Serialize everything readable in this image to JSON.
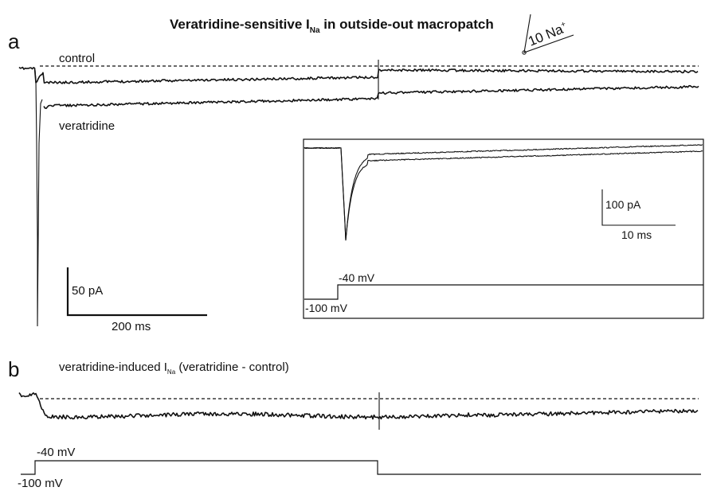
{
  "figure": {
    "title_main": "Veratridine-sensitive I",
    "title_sub": "Na",
    "title_rest": " in outside-out macropatch",
    "pipette_label": "10 Na",
    "pipette_sup": "+"
  },
  "panel_a": {
    "letter": "a",
    "control_label": "control",
    "veratridine_label": "veratridine",
    "scale_current": "50 pA",
    "scale_time": "200 ms",
    "inset": {
      "scale_current": "100 pA",
      "scale_time": "10 ms",
      "protocol_step": "-40 mV",
      "protocol_hold": "-100 mV"
    }
  },
  "panel_b": {
    "letter": "b",
    "label_main": "veratridine-induced I",
    "label_sub": "Na",
    "label_rest": " (veratridine - control)",
    "protocol_step": "-40 mV",
    "protocol_hold": "-100 mV"
  }
}
